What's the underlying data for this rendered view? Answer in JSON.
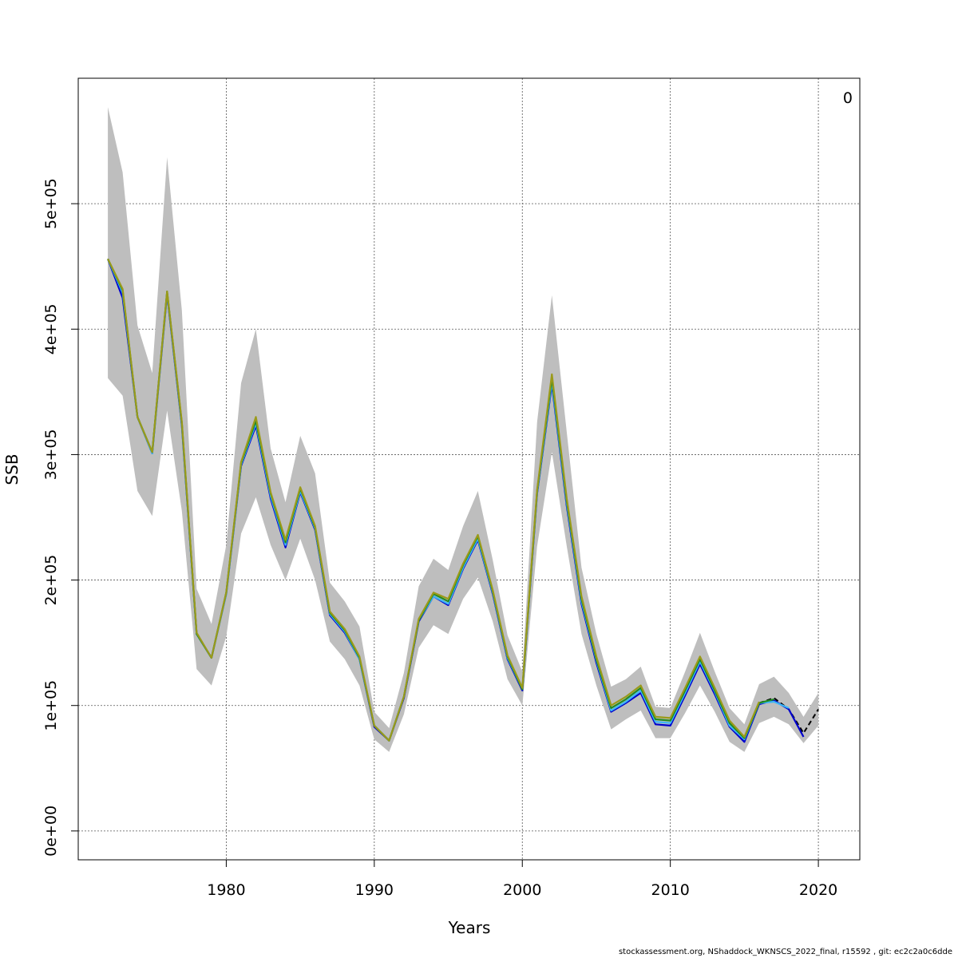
{
  "chart_data": {
    "type": "line",
    "xlabel": "Years",
    "ylabel": "SSB",
    "xlim": [
      1970.0,
      2022.8
    ],
    "ylim": [
      -23000,
      600000
    ],
    "x_ticks": [
      1980,
      1990,
      2000,
      2010,
      2020
    ],
    "y_ticks": [
      0,
      100000,
      200000,
      300000,
      400000,
      500000
    ],
    "y_tick_labels": [
      "0e+00",
      "1e+05",
      "2e+05",
      "3e+05",
      "4e+05",
      "5e+05"
    ],
    "grid": true,
    "corner_label": "0",
    "footer": "stockassessment.org, NShaddock_WKNSCS_2022_final, r15592 , git: ec2c2a0c6dde",
    "ci_band": {
      "color": "#bebebe",
      "x": [
        1972,
        1973,
        1974,
        1975,
        1976,
        1977,
        1978,
        1979,
        1980,
        1981,
        1982,
        1983,
        1984,
        1985,
        1986,
        1987,
        1988,
        1989,
        1990,
        1991,
        1992,
        1993,
        1994,
        1995,
        1996,
        1997,
        1998,
        1999,
        2000,
        2001,
        2002,
        2003,
        2004,
        2005,
        2006,
        2007,
        2008,
        2009,
        2010,
        2011,
        2012,
        2013,
        2014,
        2015,
        2016,
        2017,
        2018,
        2019,
        2020
      ],
      "upper": [
        577000,
        525000,
        403000,
        365000,
        537000,
        415000,
        193000,
        165000,
        228000,
        357000,
        400000,
        305000,
        262000,
        315000,
        285000,
        198000,
        183000,
        163000,
        95000,
        82000,
        126000,
        195000,
        217000,
        208000,
        243000,
        271000,
        216000,
        156000,
        127000,
        326000,
        427000,
        318000,
        210000,
        157000,
        115000,
        121000,
        131000,
        99000,
        98000,
        127000,
        158000,
        127000,
        98000,
        85000,
        117000,
        123000,
        110000,
        91000,
        110000
      ],
      "lower": [
        361000,
        347000,
        271000,
        251000,
        335000,
        255000,
        129000,
        116000,
        155000,
        237000,
        266000,
        228000,
        200000,
        233000,
        200000,
        151000,
        137000,
        116000,
        73000,
        63000,
        93000,
        146000,
        164000,
        157000,
        185000,
        202000,
        167000,
        121000,
        100000,
        227000,
        302000,
        227000,
        157000,
        116000,
        81000,
        89000,
        96000,
        74000,
        74000,
        94000,
        116000,
        95000,
        71000,
        63000,
        86000,
        91000,
        85000,
        70000,
        84000
      ]
    },
    "series": [
      {
        "color": "#000000",
        "dashed": true,
        "x": [
          2016,
          2017,
          2018,
          2019,
          2020
        ],
        "values": [
          102000,
          106000,
          97000,
          78000,
          97000
        ]
      },
      {
        "color": "#0000cd",
        "x": [
          1972,
          1973,
          1974,
          1975,
          1976,
          1977,
          1978,
          1979,
          1980,
          1981,
          1982,
          1983,
          1984,
          1985,
          1986,
          1987,
          1988,
          1989,
          1990,
          1991,
          1992,
          1993,
          1994,
          1995,
          1996,
          1997,
          1998,
          1999,
          2000,
          2001,
          2002,
          2003,
          2004,
          2005,
          2006,
          2007,
          2008,
          2009,
          2010,
          2011,
          2012,
          2013,
          2014,
          2015,
          2016,
          2017,
          2018,
          2019
        ],
        "values": [
          456000,
          425000,
          330000,
          301000,
          428000,
          323000,
          157000,
          138000,
          189000,
          291000,
          323000,
          265000,
          226000,
          270000,
          240000,
          172000,
          158000,
          137000,
          83000,
          72000,
          106000,
          167000,
          187000,
          180000,
          209000,
          232000,
          189000,
          137000,
          112000,
          269000,
          356000,
          259000,
          181000,
          134000,
          95000,
          102000,
          110000,
          85000,
          84000,
          108000,
          133000,
          109000,
          83000,
          71000,
          101000,
          104000,
          97000,
          75000
        ]
      },
      {
        "color": "#3cb6f5",
        "x": [
          1972,
          1973,
          1974,
          1975,
          1976,
          1977,
          1978,
          1979,
          1980,
          1981,
          1982,
          1983,
          1984,
          1985,
          1986,
          1987,
          1988,
          1989,
          1990,
          1991,
          1992,
          1993,
          1994,
          1995,
          1996,
          1997,
          1998,
          1999,
          2000,
          2001,
          2002,
          2003,
          2004,
          2005,
          2006,
          2007,
          2008,
          2009,
          2010,
          2011,
          2012,
          2013,
          2014,
          2015,
          2016,
          2017,
          2018
        ],
        "values": [
          456000,
          429000,
          330000,
          301000,
          429000,
          324000,
          157000,
          138000,
          189000,
          292000,
          325000,
          267000,
          228000,
          271000,
          241000,
          173000,
          159000,
          137000,
          84000,
          72000,
          107000,
          168000,
          187000,
          181000,
          210000,
          233000,
          190000,
          138000,
          113000,
          270000,
          358000,
          261000,
          183000,
          136000,
          96000,
          103000,
          112000,
          87000,
          86000,
          110000,
          135000,
          111000,
          84000,
          73000,
          102000,
          103000,
          98000
        ]
      },
      {
        "color": "#228b22",
        "x": [
          1972,
          1973,
          1974,
          1975,
          1976,
          1977,
          1978,
          1979,
          1980,
          1981,
          1982,
          1983,
          1984,
          1985,
          1986,
          1987,
          1988,
          1989,
          1990,
          1991,
          1992,
          1993,
          1994,
          1995,
          1996,
          1997,
          1998,
          1999,
          2000,
          2001,
          2002,
          2003,
          2004,
          2005,
          2006,
          2007,
          2008,
          2009,
          2010,
          2011,
          2012,
          2013,
          2014,
          2015,
          2016,
          2017
        ],
        "values": [
          456000,
          431000,
          330000,
          302000,
          430000,
          325000,
          157000,
          138000,
          190000,
          293000,
          327000,
          269000,
          230000,
          273000,
          242000,
          174000,
          160000,
          138000,
          84000,
          72000,
          107000,
          168000,
          189000,
          183000,
          212000,
          235000,
          191000,
          139000,
          113000,
          271000,
          361000,
          263000,
          185000,
          137000,
          98000,
          105000,
          114000,
          89000,
          88000,
          112000,
          137000,
          112000,
          86000,
          74000,
          102000,
          105000
        ]
      },
      {
        "color": "#9a9a1a",
        "x": [
          1972,
          1973,
          1974,
          1975,
          1976,
          1977,
          1978,
          1979,
          1980,
          1981,
          1982,
          1983,
          1984,
          1985,
          1986,
          1987,
          1988,
          1989,
          1990,
          1991,
          1992,
          1993,
          1994,
          1995,
          1996,
          1997,
          1998,
          1999,
          2000,
          2001,
          2002,
          2003,
          2004,
          2005,
          2006,
          2007,
          2008,
          2009,
          2010,
          2011,
          2012,
          2013,
          2014,
          2015,
          2016
        ],
        "values": [
          456000,
          432000,
          330000,
          302000,
          430000,
          326000,
          158000,
          138000,
          190000,
          294000,
          330000,
          270000,
          232000,
          274000,
          243000,
          175000,
          161000,
          139000,
          84000,
          72000,
          107000,
          169000,
          190000,
          185000,
          213000,
          236000,
          192000,
          140000,
          114000,
          272000,
          364000,
          265000,
          187000,
          139000,
          100000,
          107000,
          116000,
          91000,
          90000,
          114000,
          139000,
          114000,
          88000,
          75000,
          103000
        ]
      }
    ]
  }
}
